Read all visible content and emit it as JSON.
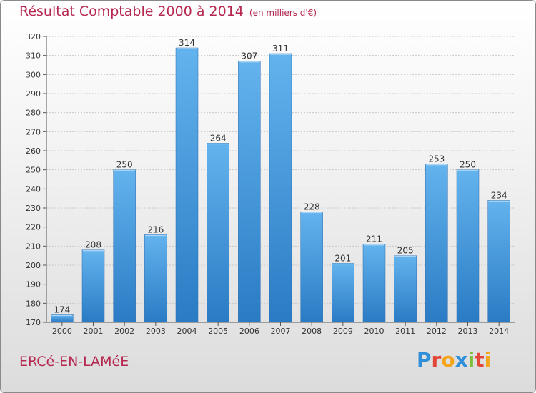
{
  "header": {
    "title": "Résultat Comptable 2000 à 2014",
    "subtitle": "(en milliers d'€)"
  },
  "footer": {
    "commune": "ERCé-EN-LAMéE",
    "logo_letters": [
      "P",
      "r",
      "o",
      "x",
      "i",
      "t",
      "i"
    ],
    "logo_colors": [
      "#2f8fd8",
      "#e2473a",
      "#f4a51c",
      "#2f8fd8",
      "#7cbf3a",
      "#e2473a",
      "#f4a51c"
    ]
  },
  "colors": {
    "bar": "#4c9fe0",
    "bar_light": "#63b3ee",
    "bar_dark": "#2a7bc4",
    "title": "#b5284f",
    "grid": "#c8c8c8"
  },
  "chart_data": {
    "type": "bar",
    "title": "Résultat Comptable 2000 à 2014",
    "subtitle": "(en milliers d'€)",
    "xlabel": "",
    "ylabel": "",
    "categories": [
      "2000",
      "2001",
      "2002",
      "2003",
      "2004",
      "2005",
      "2006",
      "2007",
      "2008",
      "2009",
      "2010",
      "2011",
      "2012",
      "2013",
      "2014"
    ],
    "values": [
      174,
      208,
      250,
      216,
      314,
      264,
      307,
      311,
      228,
      201,
      211,
      205,
      253,
      250,
      234
    ],
    "ylim": [
      170,
      320
    ],
    "yticks": [
      "170",
      "180",
      "190",
      "200",
      "210",
      "220",
      "230",
      "240",
      "250",
      "260",
      "270",
      "280",
      "290",
      "300",
      "310",
      "320"
    ],
    "grid": true,
    "legend": "none"
  }
}
